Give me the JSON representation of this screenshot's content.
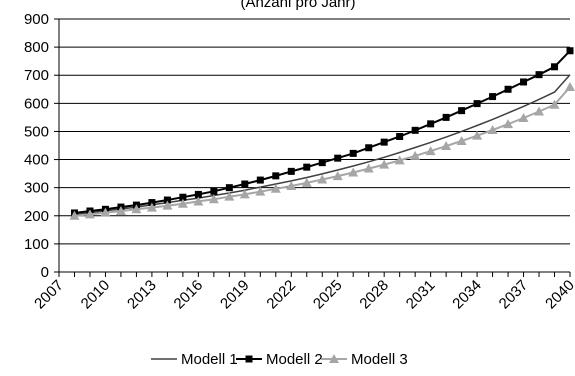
{
  "chart_data": {
    "type": "line",
    "title": "(Anzahl pro Jahr)",
    "xlabel": "",
    "ylabel": "",
    "ylim": [
      0,
      900
    ],
    "yticks": [
      "0",
      "100",
      "200",
      "300",
      "400",
      "500",
      "600",
      "700",
      "800",
      "900"
    ],
    "xlim": [
      2007,
      2040
    ],
    "xtick_labels": [
      "2007",
      "2010",
      "2013",
      "2016",
      "2019",
      "2022",
      "2025",
      "2028",
      "2031",
      "2034",
      "2037",
      "2040"
    ],
    "grid": "horizontal",
    "legend_position": "bottom",
    "x": [
      2008,
      2009,
      2010,
      2011,
      2012,
      2013,
      2014,
      2015,
      2016,
      2017,
      2018,
      2019,
      2020,
      2021,
      2022,
      2023,
      2024,
      2025,
      2026,
      2027,
      2028,
      2029,
      2030,
      2031,
      2032,
      2033,
      2034,
      2035,
      2036,
      2037,
      2038,
      2039,
      2040
    ],
    "series": [
      {
        "name": "Modell 1",
        "color": "#404040",
        "marker": "none",
        "values": [
          205,
          211,
          218,
          224,
          231,
          239,
          247,
          255,
          263,
          272,
          281,
          291,
          302,
          313,
          324,
          336,
          349,
          363,
          377,
          392,
          408,
          425,
          443,
          461,
          480,
          500,
          521,
          543,
          566,
          589,
          614,
          640,
          702
        ]
      },
      {
        "name": "Modell 2",
        "color": "#000000",
        "marker": "square",
        "values": [
          210,
          217,
          223,
          231,
          238,
          247,
          256,
          266,
          276,
          287,
          300,
          313,
          327,
          342,
          358,
          373,
          389,
          405,
          422,
          442,
          462,
          482,
          504,
          527,
          550,
          574,
          599,
          624,
          650,
          676,
          702,
          730,
          787
        ]
      },
      {
        "name": "Modell 3",
        "color": "#a6a6a6",
        "marker": "triangle",
        "values": [
          200,
          205,
          211,
          217,
          223,
          229,
          236,
          243,
          251,
          259,
          268,
          276,
          286,
          296,
          306,
          317,
          329,
          341,
          354,
          368,
          382,
          397,
          413,
          430,
          448,
          466,
          485,
          505,
          526,
          548,
          571,
          595,
          658
        ]
      }
    ]
  }
}
